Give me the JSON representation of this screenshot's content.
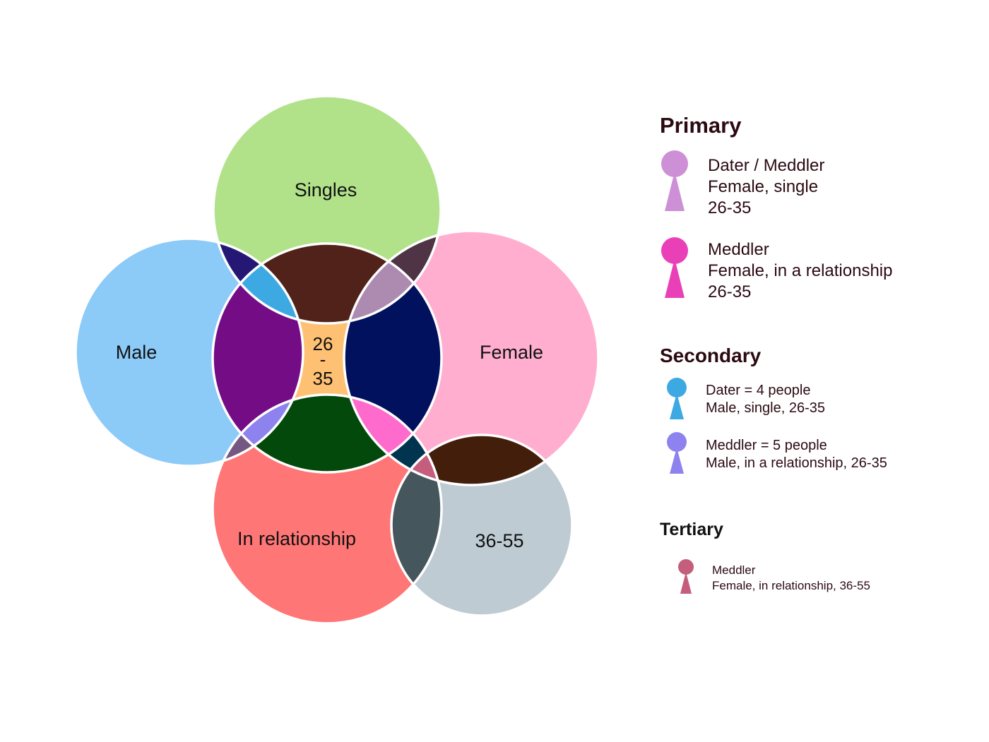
{
  "diagram": {
    "sets": {
      "singles": {
        "label": "Singles",
        "color": "#b1e28a"
      },
      "male": {
        "label": "Male",
        "color": "#8ccaf8"
      },
      "female": {
        "label": "Female",
        "color": "#ffaecf"
      },
      "in_relationship": {
        "label": "In relationship",
        "color": "#ff7676"
      },
      "age_36_55": {
        "label": "36-55",
        "color": "#becbd3"
      },
      "age_26_35": {
        "label_top": "26",
        "label_mid": "-",
        "label_bottom": "35",
        "color": "#fec173"
      }
    },
    "intersection_colors": {
      "singles_male": "#241874",
      "singles_female": "#4e3444",
      "singles_26_35": "#502219",
      "singles_male_26_35": "#3da9e3",
      "singles_female_26_35": "#ad8bb0",
      "male_26_35": "#740c86",
      "female_26_35": "#01115d",
      "relationship_26_35": "#03490b",
      "relationship_male_26_35": "#8e82ee",
      "relationship_female_26_35": "#ff6acd",
      "relationship_male": "#745783",
      "relationship_female": "#00344f",
      "female_36_55": "#431e0b",
      "relationship_female_36_55": "#c55d7c",
      "relationship_36_55": "#45565d"
    }
  },
  "legend": {
    "primary": {
      "heading": "Primary",
      "items": [
        {
          "icon": "person-icon",
          "color": "#cd90d6",
          "lines": [
            "Dater / Meddler",
            "Female, single",
            "26-35"
          ]
        },
        {
          "icon": "person-icon",
          "color": "#e940b8",
          "lines": [
            "Meddler",
            "Female, in a relationship",
            "26-35"
          ]
        }
      ]
    },
    "secondary": {
      "heading": "Secondary",
      "items": [
        {
          "icon": "person-icon",
          "color": "#3da9e3",
          "lines": [
            "Dater = 4 people",
            "Male, single, 26-35"
          ]
        },
        {
          "icon": "person-icon",
          "color": "#8e82ee",
          "lines": [
            "Meddler = 5 people",
            "Male, in a relationship, 26-35"
          ]
        }
      ]
    },
    "tertiary": {
      "heading": "Tertiary",
      "items": [
        {
          "icon": "person-icon",
          "color": "#c55d7c",
          "lines": [
            "Meddler",
            "Female, in relationship, 36-55"
          ]
        }
      ]
    }
  }
}
